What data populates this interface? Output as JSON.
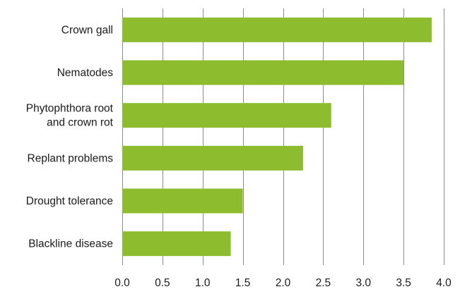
{
  "chart_data": {
    "type": "bar",
    "orientation": "horizontal",
    "categories": [
      [
        "Crown gall"
      ],
      [
        "Nematodes"
      ],
      [
        "Phytophthora root",
        "and crown rot"
      ],
      [
        "Replant problems"
      ],
      [
        "Drought tolerance"
      ],
      [
        "Blackline disease"
      ]
    ],
    "values": [
      3.85,
      3.5,
      2.6,
      2.25,
      1.5,
      1.35
    ],
    "xticks": [
      "0.0",
      "0.5",
      "1.0",
      "1.5",
      "2.0",
      "2.5",
      "3.0",
      "3.5",
      "4.0"
    ],
    "xlim": [
      0,
      4.0
    ],
    "title": "",
    "xlabel": "",
    "ylabel": "",
    "grid": "vertical",
    "legend": "none",
    "bar_color": "#8dbd2e",
    "grid_color": "#8c8c8c"
  }
}
